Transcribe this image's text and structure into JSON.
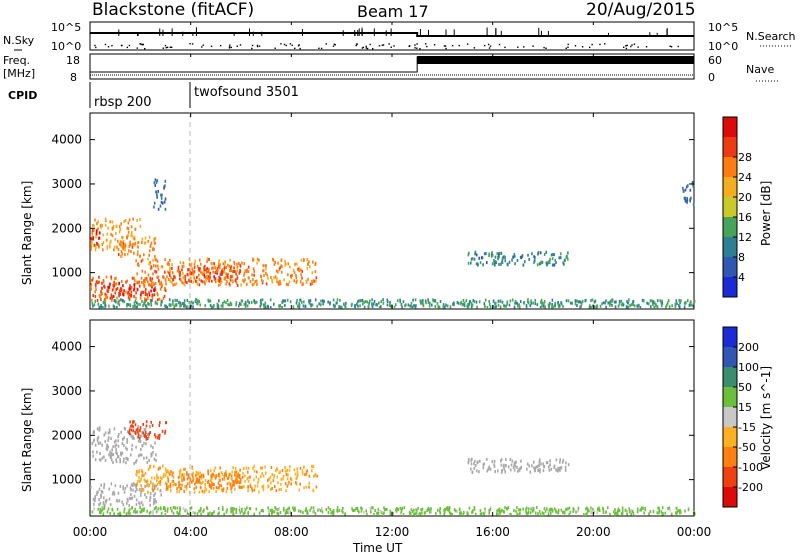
{
  "header": {
    "station": "Blackstone (fitACF)",
    "beam": "Beam 17",
    "date": "20/Aug/2015"
  },
  "sky_panel": {
    "left_label": "N.Sky",
    "right_label": "N.Search",
    "left_ticks": [
      "10^5",
      "10^0"
    ],
    "right_ticks": [
      "10^5",
      "10^0"
    ]
  },
  "freq_panel": {
    "left_label_1": "Freq.",
    "left_label_2": "[MHz]",
    "right_label": "Nave",
    "left_ticks": [
      "18",
      "8"
    ],
    "right_ticks": [
      "60",
      "0"
    ]
  },
  "cpid": {
    "label": "CPID",
    "programs": [
      {
        "name": "rbsp 200",
        "start_hour": 0
      },
      {
        "name": "twofsound 3501",
        "start_hour": 4
      }
    ]
  },
  "x_axis": {
    "label": "Time UT",
    "ticks": [
      "00:00",
      "04:00",
      "08:00",
      "12:00",
      "16:00",
      "20:00",
      "00:00"
    ]
  },
  "colors": {
    "power_scale": [
      "#1a2bd6",
      "#2f57b3",
      "#2f7f93",
      "#46a45a",
      "#c9c927",
      "#f3ae20",
      "#ff7d10",
      "#ee3a12",
      "#dd0a0a"
    ],
    "velocity_scale": [
      "#1a2bd6",
      "#2f57b3",
      "#3c8c6e",
      "#6cbf3c",
      "#c8c8c8",
      "#ffb020",
      "#ff8010",
      "#f04010",
      "#dd0a0a"
    ],
    "ground_scatter": "#a8a8a8"
  },
  "chart_data": [
    {
      "type": "heatmap",
      "title": "",
      "quantity": "Power [dB]",
      "ylabel": "Slant Range [km]",
      "xlabel": "Time UT",
      "x_range_hours": [
        0,
        24
      ],
      "ylim": [
        180,
        4600
      ],
      "yticks": [
        1000,
        2000,
        3000,
        4000
      ],
      "colorbar_ticks": [
        4,
        8,
        12,
        16,
        20,
        24,
        28
      ],
      "colorbar_range": [
        0,
        30
      ],
      "echo_regions": [
        {
          "t0": 0.0,
          "t1": 2.0,
          "r0": 1500,
          "r1": 2200,
          "level": 20
        },
        {
          "t0": 1.0,
          "t1": 2.6,
          "r0": 1350,
          "r1": 1800,
          "level": 22
        },
        {
          "t0": 0.0,
          "t1": 0.4,
          "r0": 1600,
          "r1": 1950,
          "level": 28
        },
        {
          "t0": 0.0,
          "t1": 3.0,
          "r0": 350,
          "r1": 900,
          "level": 24
        },
        {
          "t0": 0.4,
          "t1": 2.6,
          "r0": 450,
          "r1": 750,
          "level": 28
        },
        {
          "t0": 1.8,
          "t1": 9.0,
          "r0": 700,
          "r1": 1300,
          "level": 22
        },
        {
          "t0": 3.0,
          "t1": 6.0,
          "r0": 780,
          "r1": 1150,
          "level": 26
        },
        {
          "t0": 0.0,
          "t1": 24.0,
          "r0": 200,
          "r1": 380,
          "level": 10
        },
        {
          "t0": 15.0,
          "t1": 19.0,
          "r0": 1150,
          "r1": 1450,
          "level": 8
        },
        {
          "t0": 2.5,
          "t1": 3.0,
          "r0": 2400,
          "r1": 3100,
          "level": 6
        },
        {
          "t0": 23.5,
          "t1": 24.0,
          "r0": 2500,
          "r1": 3050,
          "level": 6
        }
      ]
    },
    {
      "type": "heatmap",
      "title": "",
      "quantity": "Velocity [m s^-1]",
      "ylabel": "Slant Range [km]",
      "xlabel": "Time UT",
      "x_range_hours": [
        0,
        24
      ],
      "ylim": [
        180,
        4600
      ],
      "yticks": [
        1000,
        2000,
        3000,
        4000
      ],
      "colorbar_ticks": [
        "200",
        "100",
        "50",
        "15",
        "-15",
        "-50",
        "-100",
        "-200"
      ],
      "echo_regions": [
        {
          "t0": 0.0,
          "t1": 2.6,
          "r0": 1350,
          "r1": 2200,
          "level": "ground"
        },
        {
          "t0": 0.0,
          "t1": 2.8,
          "r0": 400,
          "r1": 900,
          "level": "ground"
        },
        {
          "t0": 1.8,
          "t1": 9.0,
          "r0": 700,
          "r1": 1300,
          "level": -40
        },
        {
          "t0": 3.0,
          "t1": 6.0,
          "r0": 780,
          "r1": 1150,
          "level": -70
        },
        {
          "t0": 0.0,
          "t1": 24.0,
          "r0": 200,
          "r1": 360,
          "level": 30
        },
        {
          "t0": 15.0,
          "t1": 19.0,
          "r0": 1150,
          "r1": 1450,
          "level": "ground"
        },
        {
          "t0": 1.5,
          "t1": 3.0,
          "r0": 1900,
          "r1": 2300,
          "level": -150
        }
      ]
    }
  ]
}
